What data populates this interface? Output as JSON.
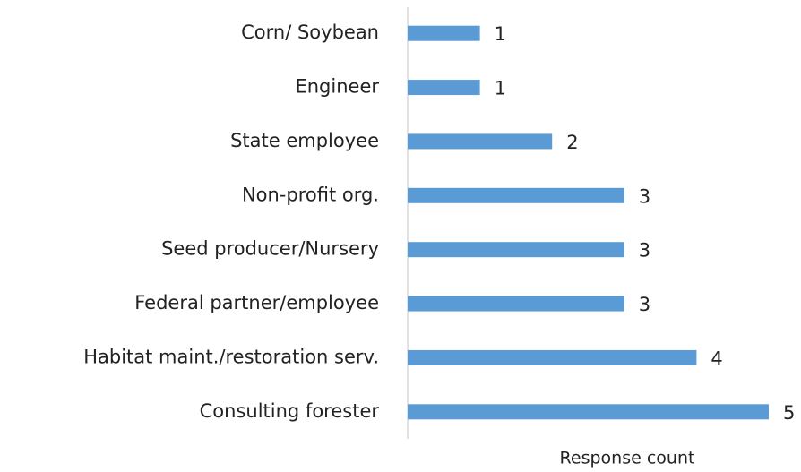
{
  "chart_data": {
    "type": "bar",
    "orientation": "horizontal",
    "categories": [
      "Corn/ Soybean",
      "Engineer",
      "State employee",
      "Non-profit org.",
      "Seed producer/Nursery",
      "Federal partner/employee",
      "Habitat maint./restoration serv.",
      "Consulting forester"
    ],
    "values": [
      1,
      1,
      2,
      3,
      3,
      3,
      4,
      5
    ],
    "color": "#5b9bd5",
    "xlabel": "Response count",
    "xlim": [
      0,
      5
    ]
  }
}
